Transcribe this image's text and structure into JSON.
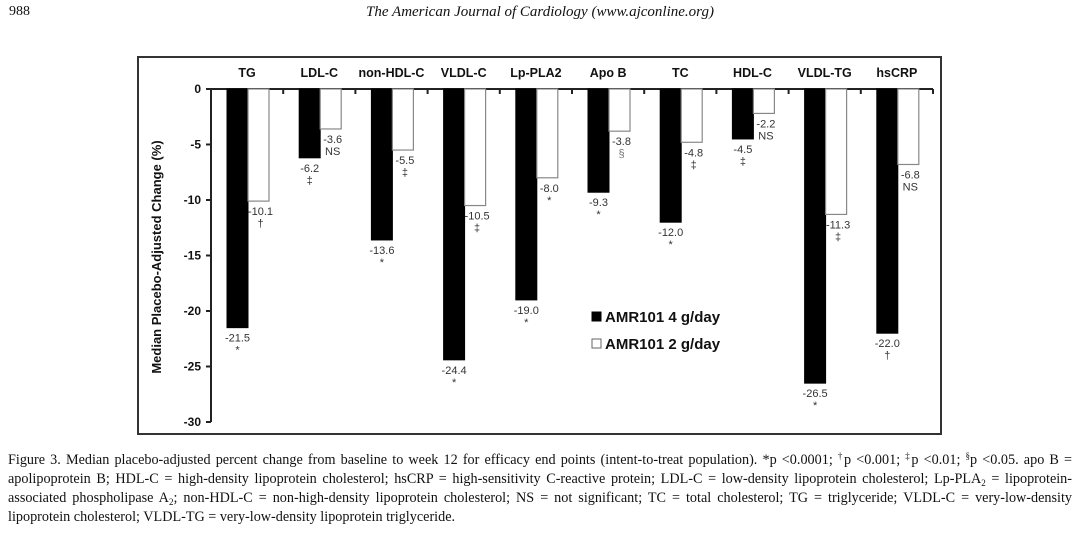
{
  "header": {
    "page_number": "988",
    "journal": "The American Journal of Cardiology (www.ajconline.org)"
  },
  "chart_data": {
    "type": "bar",
    "title": "",
    "xlabel": "",
    "ylabel": "Median Placebo-Adjusted Change (%)",
    "ylim": [
      -30,
      0
    ],
    "yticks": [
      0,
      -5,
      -10,
      -15,
      -20,
      -25,
      -30
    ],
    "ytick_labels": [
      "0",
      "-5",
      "-10",
      "-15",
      "-20",
      "-25",
      "-30"
    ],
    "grid": false,
    "category_label_position": "top",
    "categories": [
      "TG",
      "LDL-C",
      "non-HDL-C",
      "VLDL-C",
      "Lp-PLA2",
      "Apo B",
      "TC",
      "HDL-C",
      "VLDL-TG",
      "hsCRP"
    ],
    "series": [
      {
        "name": "AMR101 4 g/day",
        "color": "#000000",
        "values": [
          -21.5,
          -6.2,
          -13.6,
          -24.4,
          -19.0,
          -9.3,
          -12.0,
          -4.5,
          -26.5,
          -22.0
        ],
        "value_labels": [
          "-21.5",
          "-6.2",
          "-13.6",
          "-24.4",
          "-19.0",
          "-9.3",
          "-12.0",
          "-4.5",
          "-26.5",
          "-22.0"
        ],
        "significance": [
          "*",
          "‡",
          "*",
          "*",
          "*",
          "*",
          "*",
          "‡",
          "*",
          "†"
        ]
      },
      {
        "name": "AMR101 2 g/day",
        "color": "#ffffff",
        "values": [
          -10.1,
          -3.6,
          -5.5,
          -10.5,
          -8.0,
          -3.8,
          -4.8,
          -2.2,
          -11.3,
          -6.8
        ],
        "value_labels": [
          "-10.1",
          "-3.6",
          "-5.5",
          "-10.5",
          "-8.0",
          "-3.8",
          "-4.8",
          "-2.2",
          "-11.3",
          "-6.8"
        ],
        "significance": [
          "†",
          "NS",
          "‡",
          "‡",
          "*",
          "§",
          "‡",
          "NS",
          "‡",
          "NS"
        ]
      }
    ],
    "legend": {
      "placement": "center",
      "entries": [
        "AMR101 4 g/day",
        "AMR101 2 g/day"
      ]
    }
  },
  "caption": {
    "lines": [
      "Figure 3. Median placebo-adjusted percent change from baseline to week 12 for efficacy end points (intent-to-treat population). *p <0.0001; ",
      "†",
      "p <0.001; ",
      "‡",
      "p <0.01; ",
      "§",
      "p <0.05. apo B = apolipoprotein B; HDL-C = high-density lipoprotein cholesterol; hsCRP = high-sensitivity C-reactive protein; LDL-C = low-density lipoprotein cholesterol; Lp-PLA",
      "2",
      " = lipoprotein-associated phospholipase A",
      "2",
      "; non-HDL-C = non-high-density lipoprotein cholesterol; NS = not significant; TC = total cholesterol; TG = triglyceride; VLDL-C = very-low-density lipoprotein cholesterol; VLDL-TG = very-low-density lipoprotein triglyceride."
    ]
  }
}
